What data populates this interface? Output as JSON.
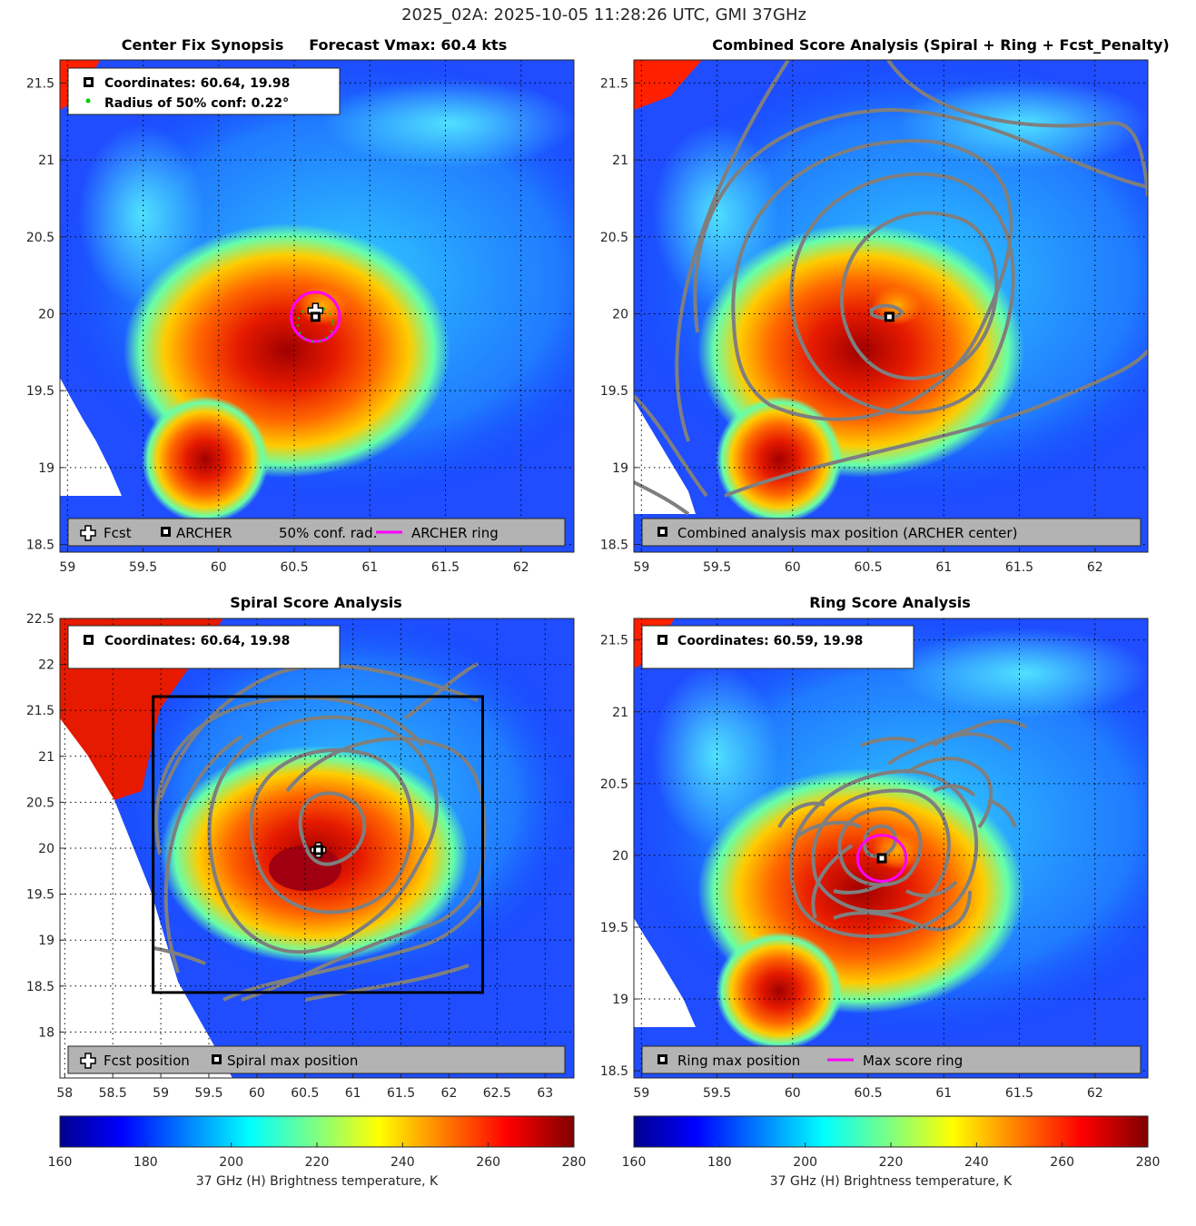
{
  "figure_title": "2025_02A: 2025-10-05 11:28:26 UTC, GMI 37GHz",
  "chart_data": [
    {
      "id": "p1",
      "type": "heatmap",
      "title": "Center Fix Synopsis     Forecast Vmax: 60.4 kts",
      "xlim": [
        58.95,
        62.35
      ],
      "ylim": [
        18.45,
        21.65
      ],
      "xticks": [
        59,
        59.5,
        60,
        60.5,
        61,
        61.5,
        62
      ],
      "yticks": [
        18.5,
        19,
        19.5,
        20,
        20.5,
        21,
        21.5
      ],
      "xtick_labels": [
        "59",
        "59.5",
        "60",
        "60.5",
        "61",
        "61.5",
        "62"
      ],
      "ytick_labels": [
        "18.5",
        "19",
        "19.5",
        "20",
        "20.5",
        "21",
        "21.5"
      ],
      "info_lines": [
        "Coordinates: 60.64, 19.98",
        "Radius of 50% conf: 0.22°"
      ],
      "bottom_legend": [
        "Fcst",
        "ARCHER",
        "50% conf. rad.",
        "ARCHER ring"
      ],
      "center": [
        60.64,
        19.98
      ],
      "forecast": [
        60.64,
        20.02
      ],
      "ring_radius_deg": 0.16
    },
    {
      "id": "p2",
      "type": "heatmap",
      "title": "Combined Score Analysis (Spiral + Ring + Fcst_Penalty)",
      "xlim": [
        58.95,
        62.35
      ],
      "ylim": [
        18.45,
        21.65
      ],
      "xticks": [
        59,
        59.5,
        60,
        60.5,
        61,
        61.5,
        62
      ],
      "yticks": [
        18.5,
        19,
        19.5,
        20,
        20.5,
        21,
        21.5
      ],
      "xtick_labels": [
        "59",
        "59.5",
        "60",
        "60.5",
        "61",
        "61.5",
        "62"
      ],
      "ytick_labels": [
        "18.5",
        "19",
        "19.5",
        "20",
        "20.5",
        "21",
        "21.5"
      ],
      "bottom_legend": [
        "Combined analysis max position (ARCHER center)"
      ],
      "center": [
        60.64,
        19.98
      ]
    },
    {
      "id": "p3",
      "type": "heatmap",
      "title": "Spiral Score Analysis",
      "xlim": [
        57.95,
        63.3
      ],
      "ylim": [
        17.5,
        22.5
      ],
      "xticks": [
        58,
        58.5,
        59,
        59.5,
        60,
        60.5,
        61,
        61.5,
        62,
        62.5,
        63
      ],
      "yticks": [
        18,
        18.5,
        19,
        19.5,
        20,
        20.5,
        21,
        21.5,
        22,
        22.5
      ],
      "xtick_labels": [
        "58",
        "58.5",
        "59",
        "59.5",
        "60",
        "60.5",
        "61",
        "61.5",
        "62",
        "62.5",
        "63"
      ],
      "ytick_labels": [
        "18",
        "18.5",
        "19",
        "19.5",
        "20",
        "20.5",
        "21",
        "21.5",
        "22",
        "22.5"
      ],
      "info_lines": [
        "Coordinates: 60.64, 19.98"
      ],
      "bottom_legend": [
        "Fcst position",
        "Spiral max position"
      ],
      "center": [
        60.64,
        19.98
      ],
      "search_box": [
        58.92,
        18.43,
        62.35,
        21.65
      ]
    },
    {
      "id": "p4",
      "type": "heatmap",
      "title": "Ring Score Analysis",
      "xlim": [
        58.95,
        62.35
      ],
      "ylim": [
        18.45,
        21.65
      ],
      "xticks": [
        59,
        59.5,
        60,
        60.5,
        61,
        61.5,
        62
      ],
      "yticks": [
        18.5,
        19,
        19.5,
        20,
        20.5,
        21,
        21.5
      ],
      "xtick_labels": [
        "59",
        "59.5",
        "60",
        "60.5",
        "61",
        "61.5",
        "62"
      ],
      "ytick_labels": [
        "18.5",
        "19",
        "19.5",
        "20",
        "20.5",
        "21",
        "21.5"
      ],
      "info_lines": [
        "Coordinates: 60.59, 19.98"
      ],
      "bottom_legend": [
        "Ring max position",
        "Max score ring"
      ],
      "center": [
        60.59,
        19.98
      ],
      "ring_radius_deg": 0.16
    }
  ],
  "colorbars": [
    {
      "id": "cb1",
      "label": "37 GHz (H) Brightness temperature, K",
      "range": [
        160,
        280
      ],
      "ticks": [
        160,
        180,
        200,
        220,
        240,
        260,
        280
      ],
      "tick_labels": [
        "160",
        "180",
        "200",
        "220",
        "240",
        "260",
        "280"
      ]
    },
    {
      "id": "cb2",
      "label": "37 GHz (H) Brightness temperature, K",
      "range": [
        160,
        280
      ],
      "ticks": [
        160,
        180,
        200,
        220,
        240,
        260,
        280
      ],
      "tick_labels": [
        "160",
        "180",
        "200",
        "220",
        "240",
        "260",
        "280"
      ]
    }
  ],
  "colors": {
    "ring": "#ff00ff",
    "contour": "#7f7f7f",
    "legend_bg": "#b3b3b3",
    "conf_dot": "#00cc00"
  }
}
